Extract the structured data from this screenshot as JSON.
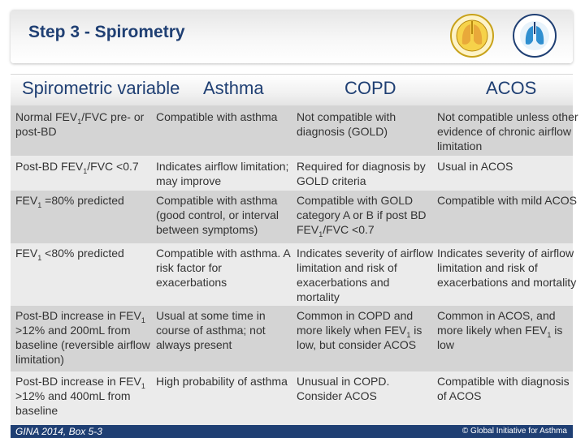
{
  "header": {
    "title": "Step 3 - Spirometry",
    "gold_logo_icon": "gold-globe-lungs-logo",
    "gina_logo_icon": "gina-lungs-logo"
  },
  "table": {
    "columns": [
      "Spirometric variable",
      "Asthma",
      "COPD",
      "ACOS"
    ],
    "rows": [
      {
        "variable": [
          "Normal FEV",
          "1",
          "/FVC pre- or post-BD"
        ],
        "asthma": "Compatible with asthma",
        "copd": "Not compatible with diagnosis (GOLD)",
        "acos": "Not compatible unless other evidence of chronic airflow limitation"
      },
      {
        "variable": [
          "Post-BD FEV",
          "1",
          "/FVC <0.7"
        ],
        "asthma": "Indicates airflow limitation; may improve",
        "copd": "Required for diagnosis by GOLD criteria",
        "acos": "Usual in ACOS"
      },
      {
        "variable": [
          "FEV",
          "1",
          " =80% predicted"
        ],
        "asthma": "Compatible with asthma (good control, or interval between symptoms)",
        "copd": [
          "Compatible with GOLD category A or B if post BD FEV",
          "1",
          "/FVC <0.7"
        ],
        "acos": "Compatible with mild ACOS"
      },
      {
        "variable": [
          "FEV",
          "1",
          " <80% predicted"
        ],
        "asthma": "Compatible with asthma. A risk factor for exacerbations",
        "copd": "Indicates severity of airflow limitation and risk of exacerbations and mortality",
        "acos": "Indicates severity of airflow limitation and risk of exacerbations and mortality"
      },
      {
        "variable": [
          "Post-BD increase in FEV",
          "1",
          " >12% and 200mL from baseline (reversible airflow limitation)"
        ],
        "asthma": "Usual at some time in course of asthma; not always present",
        "copd": [
          "Common in COPD and more likely when FEV",
          "1",
          " is low, but consider ACOS"
        ],
        "acos": [
          "Common in ACOS, and more likely when FEV",
          "1",
          " is low"
        ]
      },
      {
        "variable": [
          "Post-BD increase in FEV",
          "1",
          " >12% and 400mL from baseline"
        ],
        "asthma": "High probability of asthma",
        "copd": "Unusual in COPD. Consider ACOS",
        "acos": "Compatible with diagnosis of ACOS"
      }
    ]
  },
  "footer": {
    "source": "GINA 2014, Box 5-3",
    "copyright": "© Global Initiative for Asthma"
  },
  "colors": {
    "navy": "#1f3f73",
    "row_dark": "#d4d4d4",
    "row_light": "#ebebeb"
  }
}
